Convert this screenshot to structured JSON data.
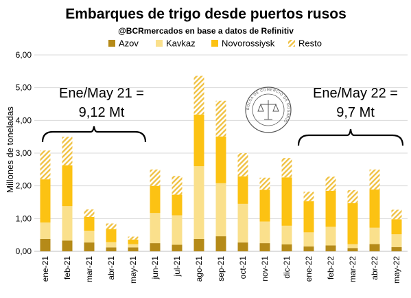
{
  "chart_data": {
    "type": "bar",
    "stacked": true,
    "title": "Embarques de trigo desde puertos rusos",
    "subtitle": "@BCRmercados en base a datos de Refinitiv",
    "xlabel": "",
    "ylabel": "Millones de toneladas",
    "ylim": [
      0,
      6
    ],
    "yticks": [
      "0,00",
      "1,00",
      "2,00",
      "3,00",
      "4,00",
      "5,00",
      "6,00"
    ],
    "grid": true,
    "legend_position": "top",
    "categories": [
      "ene-21",
      "feb-21",
      "mar-21",
      "abr-21",
      "may-21",
      "jun-21",
      "jul-21",
      "ago-21",
      "sep-21",
      "oct-21",
      "nov-21",
      "dic-21",
      "ene-22",
      "feb-22",
      "mar-22",
      "abr-22",
      "may-22"
    ],
    "series": [
      {
        "name": "Azov",
        "color": "#b58a18",
        "values": [
          0.38,
          0.33,
          0.27,
          0.12,
          0.12,
          0.25,
          0.2,
          0.38,
          0.46,
          0.27,
          0.25,
          0.21,
          0.15,
          0.18,
          0.1,
          0.22,
          0.13
        ]
      },
      {
        "name": "Kavkaz",
        "color": "#fae08c",
        "values": [
          0.5,
          1.05,
          0.36,
          0.16,
          0.1,
          0.92,
          0.9,
          2.22,
          1.62,
          1.18,
          0.66,
          0.57,
          0.43,
          0.57,
          0.12,
          0.5,
          0.39
        ]
      },
      {
        "name": "Novorossiysk",
        "color": "#fcc213",
        "values": [
          1.32,
          1.25,
          0.42,
          0.4,
          0.14,
          0.83,
          0.63,
          1.58,
          1.43,
          0.84,
          0.97,
          1.48,
          0.95,
          1.1,
          1.25,
          1.17,
          0.46
        ]
      },
      {
        "name": "Resto",
        "color": "#fdd97a",
        "values": [
          0.88,
          0.87,
          0.23,
          0.17,
          0.09,
          0.5,
          0.57,
          1.18,
          1.09,
          0.71,
          0.37,
          0.59,
          0.29,
          0.43,
          0.4,
          0.61,
          0.29
        ]
      }
    ],
    "annotations": [
      {
        "text_line1": "Ene/May 21 =",
        "text_line2": "9,12 Mt"
      },
      {
        "text_line1": "Ene/May 22 =",
        "text_line2": "9,7 Mt"
      }
    ],
    "seal_text": "BOLSA DE COMERCIO DE ROSARIO"
  }
}
